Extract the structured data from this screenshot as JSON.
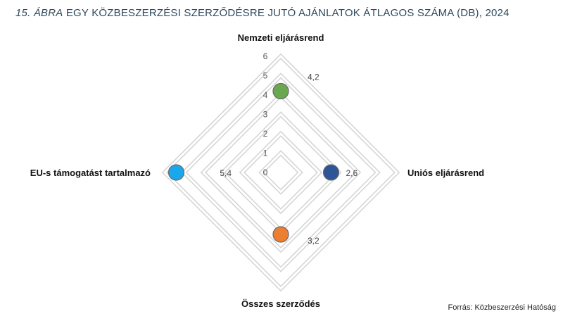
{
  "title": {
    "number": "15. ÁBRA",
    "text": "EGY KÖZBESZERZÉSI SZERZŐDÉSRE JUTÓ AJÁNLATOK ÁTLAGOS SZÁMA (DB), 2024"
  },
  "source": "Forrás: Közbeszerzési Hatóság",
  "chart_data": {
    "type": "radar",
    "title": "EGY KÖZBESZERZÉSI SZERZŐDÉSRE JUTÓ AJÁNLATOK ÁTLAGOS SZÁMA (DB), 2024",
    "axes": [
      {
        "key": "nemzeti",
        "label": "Nemzeti eljárásrend",
        "direction": "top",
        "value": 4.2,
        "value_label": "4,2",
        "color": "#6aa84f"
      },
      {
        "key": "unios",
        "label": "Uniós eljárásrend",
        "direction": "right",
        "value": 2.6,
        "value_label": "2,6",
        "color": "#2e5597"
      },
      {
        "key": "osszes",
        "label": "Összes szerződés",
        "direction": "bottom",
        "value": 3.2,
        "value_label": "3,2",
        "color": "#ed7d31"
      },
      {
        "key": "eu",
        "label": "EU-s támogatást tartalmazó",
        "direction": "left",
        "value": 5.4,
        "value_label": "5,4",
        "color": "#1aa7ec"
      }
    ],
    "scale": {
      "min": 0,
      "max": 6,
      "ticks": [
        0,
        1,
        2,
        3,
        4,
        5,
        6
      ]
    },
    "grid_rings": [
      1,
      2,
      3,
      4,
      5,
      6
    ],
    "grid": true,
    "legend": "none"
  }
}
